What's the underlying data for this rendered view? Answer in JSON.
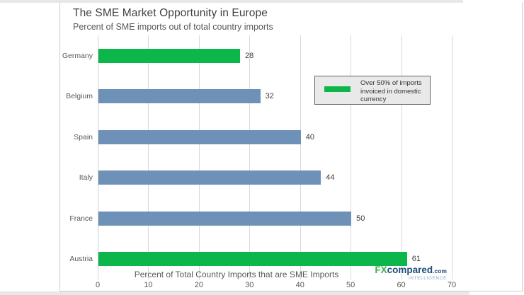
{
  "header": {
    "title": "The SME Market Opportunity in Europe",
    "subtitle": "Percent of SME imports out of total country imports"
  },
  "chart_data": {
    "type": "bar",
    "orientation": "horizontal",
    "title": "The SME Market Opportunity in Europe",
    "subtitle": "Percent of SME imports out of total country imports",
    "categories": [
      "Germany",
      "Belgium",
      "Spain",
      "Italy",
      "France",
      "Austria"
    ],
    "values": [
      28,
      32,
      40,
      44,
      50,
      61
    ],
    "data_labels": [
      "28",
      "32",
      "40",
      "44",
      "50",
      "61"
    ],
    "highlighted": [
      true,
      false,
      false,
      false,
      false,
      true
    ],
    "colors": {
      "highlight": "#0db64a",
      "default": "#6e91b8",
      "gridline": "#d9d9d9"
    },
    "xlabel": "Percent of Total Country Imports that are SME Imports",
    "xlim": [
      0,
      70
    ],
    "xticks": [
      0,
      10,
      20,
      30,
      40,
      50,
      60,
      70
    ],
    "grid": "vertical-only",
    "legend": {
      "position": "upper-right-inside",
      "swatch_color": "#0db64a",
      "label": "Over 50% of imports invoiced in domestic currency",
      "label_lines": [
        "Over 50% of imports",
        "invoiced in domestic",
        "currency"
      ]
    }
  },
  "branding": {
    "fx": "FX",
    "compared": "compared",
    "domain": ".com",
    "tagline": "INTELLIGENCE",
    "fx_color": "#3fae49",
    "compared_color": "#1f4e79",
    "tagline_color": "#8fa9cf"
  }
}
